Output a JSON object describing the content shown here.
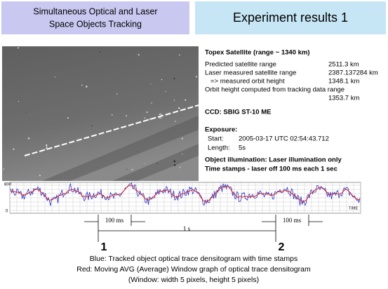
{
  "header": {
    "left_title": [
      "Simultaneous Optical and Laser",
      "Space Objects Tracking"
    ],
    "right_title": "Experiment results 1"
  },
  "image": {
    "labels": [
      "1",
      "2"
    ]
  },
  "info": {
    "target": "Topex Satellite (range ~ 1340 km)",
    "rows": [
      {
        "label": "Predicted satellite range",
        "value": "2511.3 km"
      },
      {
        "label": "Laser measured satellite range",
        "value": "2387.137284 km"
      },
      {
        "label": "=> measured orbit height",
        "value": "1348.1 km"
      },
      {
        "label": "Orbit height computed from tracking data range",
        "value": "1353.7 km"
      }
    ],
    "ccd": "CCD: SBIG ST-10 ME",
    "exposure": {
      "heading": "Exposure:",
      "start_label": "Start:",
      "start": "2005-03-17 UTC 02:54:43.712",
      "length_label": "Length:",
      "length": "5s"
    },
    "notes": [
      "Object illumination: Laser illumination only",
      "Time stamps - laser off 100 ms each 1 sec"
    ]
  },
  "densitogram": {
    "y_top": "800",
    "y_bottom": "0",
    "x_label": "TIME"
  },
  "timeline": {
    "spans": [
      "100 ms",
      "1 s",
      "100 ms"
    ],
    "markers": [
      "1",
      "2"
    ]
  },
  "caption": [
    "Blue: Tracked object optical trace densitogram with time stamps",
    "Red: Moving AVG (Average) Window graph of optical trace densitogram",
    "(Window: width 5 pixels, height 5 pixels)"
  ]
}
